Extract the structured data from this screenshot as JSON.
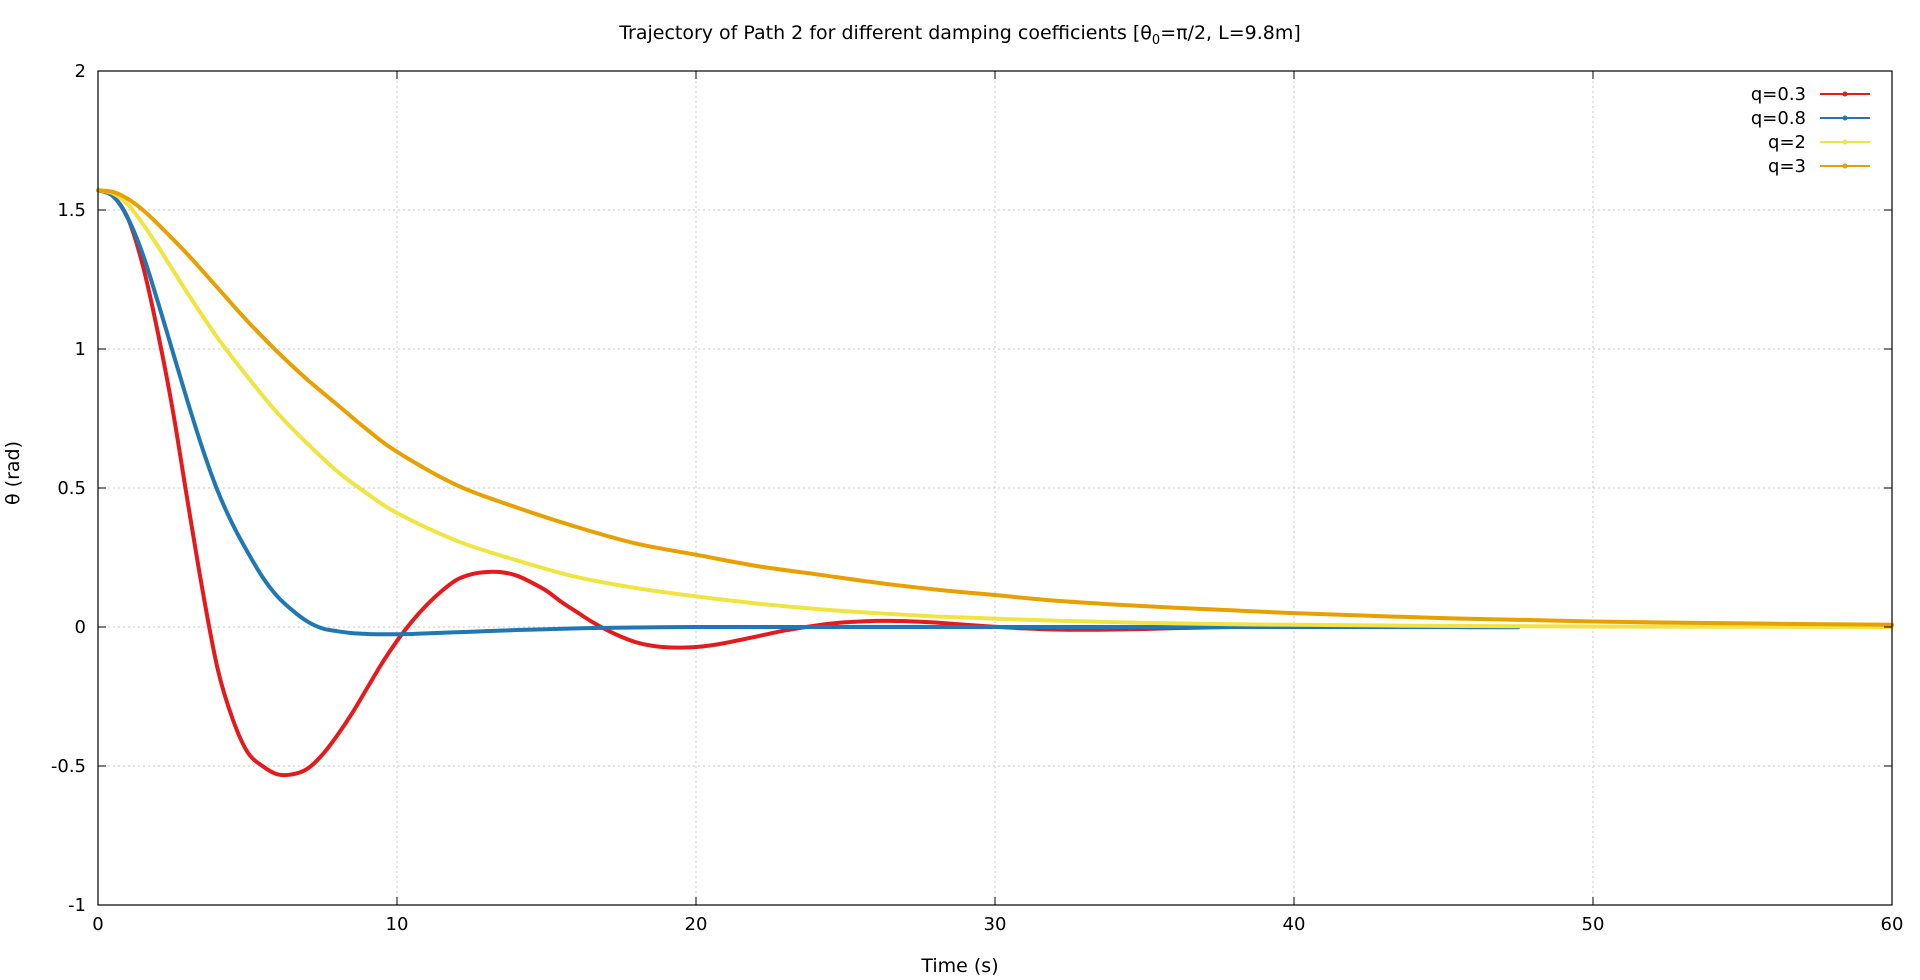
{
  "chart_data": {
    "type": "line",
    "title_prefix": "Trajectory of Path 2 for different damping coefficients [θ",
    "title_sub": "0",
    "title_suffix": "=π/2, L=9.8m]",
    "xlabel": "Time (s)",
    "ylabel": "θ (rad)",
    "xlim": [
      0,
      60
    ],
    "ylim": [
      -1,
      2
    ],
    "xticks": [
      0,
      10,
      20,
      30,
      40,
      50,
      60
    ],
    "yticks": [
      -1,
      -0.5,
      0,
      0.5,
      1,
      1.5,
      2
    ],
    "grid": true,
    "legend_position": "top-right",
    "series": [
      {
        "name": "q=0.3",
        "color": "#e41a1c",
        "x": [
          0,
          0.5,
          1,
          1.5,
          2,
          2.5,
          3,
          3.5,
          4,
          4.5,
          5,
          5.5,
          6,
          6.5,
          7,
          7.5,
          8,
          8.5,
          9,
          9.5,
          10,
          10.5,
          11,
          11.5,
          12,
          12.5,
          13,
          13.5,
          14,
          14.5,
          15,
          15.5,
          16,
          16.5,
          17,
          17.5,
          18,
          18.5,
          19,
          19.5,
          20,
          20.5,
          21,
          21.5,
          22,
          22.5,
          23,
          23.5,
          24,
          24.5,
          25,
          25.5,
          26,
          26.5,
          27,
          27.5,
          28,
          28.5,
          29,
          30,
          31,
          32,
          33,
          34,
          35,
          36,
          38,
          40,
          42,
          44,
          46,
          47.5
        ],
        "y": [
          1.571,
          1.55,
          1.47,
          1.3,
          1.06,
          0.78,
          0.45,
          0.13,
          -0.15,
          -0.33,
          -0.45,
          -0.5,
          -0.53,
          -0.53,
          -0.51,
          -0.46,
          -0.39,
          -0.31,
          -0.22,
          -0.13,
          -0.05,
          0.02,
          0.08,
          0.13,
          0.17,
          0.19,
          0.198,
          0.197,
          0.185,
          0.16,
          0.13,
          0.09,
          0.055,
          0.02,
          -0.01,
          -0.035,
          -0.055,
          -0.067,
          -0.073,
          -0.074,
          -0.072,
          -0.066,
          -0.057,
          -0.046,
          -0.035,
          -0.023,
          -0.012,
          -0.003,
          0.005,
          0.012,
          0.017,
          0.02,
          0.022,
          0.022,
          0.021,
          0.019,
          0.016,
          0.012,
          0.008,
          0.001,
          -0.005,
          -0.009,
          -0.01,
          -0.009,
          -0.007,
          -0.004,
          0.0,
          0.002,
          0.002,
          0.001,
          -0.001,
          -0.001
        ]
      },
      {
        "name": "q=0.8",
        "color": "#1f77b4",
        "x": [
          0,
          0.5,
          1,
          1.5,
          2,
          2.5,
          3,
          3.5,
          4,
          4.5,
          5,
          5.5,
          6,
          6.5,
          7,
          7.5,
          8,
          8.5,
          9,
          9.5,
          10,
          10.5,
          11,
          12,
          13,
          14,
          15,
          16,
          17,
          18,
          20,
          22,
          25,
          30,
          35,
          40,
          45,
          47.5
        ],
        "y": [
          1.571,
          1.55,
          1.47,
          1.34,
          1.17,
          0.99,
          0.81,
          0.64,
          0.49,
          0.37,
          0.27,
          0.18,
          0.11,
          0.06,
          0.02,
          -0.005,
          -0.015,
          -0.022,
          -0.025,
          -0.026,
          -0.026,
          -0.025,
          -0.023,
          -0.019,
          -0.015,
          -0.011,
          -0.008,
          -0.005,
          -0.003,
          -0.002,
          0.0,
          0.0,
          0.0,
          0.0,
          0.0,
          0.0,
          0.0,
          0.0
        ]
      },
      {
        "name": "q=2",
        "color": "#f0e442",
        "x": [
          0,
          0.5,
          1,
          1.5,
          2,
          3,
          4,
          5,
          6,
          7,
          8,
          9,
          10,
          12,
          14,
          16,
          18,
          20,
          22,
          24,
          26,
          28,
          30,
          32,
          35,
          38,
          40,
          45,
          50,
          55,
          60
        ],
        "y": [
          1.571,
          1.56,
          1.52,
          1.45,
          1.37,
          1.2,
          1.04,
          0.9,
          0.77,
          0.66,
          0.56,
          0.48,
          0.41,
          0.31,
          0.24,
          0.18,
          0.14,
          0.11,
          0.085,
          0.065,
          0.05,
          0.038,
          0.03,
          0.023,
          0.015,
          0.01,
          0.008,
          0.004,
          0.002,
          0.001,
          0.0
        ]
      },
      {
        "name": "q=3",
        "color": "#e8a000",
        "x": [
          0,
          0.5,
          1,
          1.5,
          2,
          3,
          4,
          5,
          6,
          7,
          8,
          9,
          10,
          12,
          14,
          16,
          18,
          20,
          22,
          24,
          26,
          28,
          30,
          32,
          35,
          38,
          40,
          45,
          50,
          55,
          60
        ],
        "y": [
          1.571,
          1.565,
          1.54,
          1.5,
          1.45,
          1.34,
          1.22,
          1.1,
          0.99,
          0.89,
          0.8,
          0.71,
          0.63,
          0.51,
          0.43,
          0.36,
          0.3,
          0.26,
          0.22,
          0.19,
          0.16,
          0.135,
          0.115,
          0.095,
          0.075,
          0.06,
          0.05,
          0.032,
          0.02,
          0.013,
          0.008
        ]
      }
    ]
  }
}
